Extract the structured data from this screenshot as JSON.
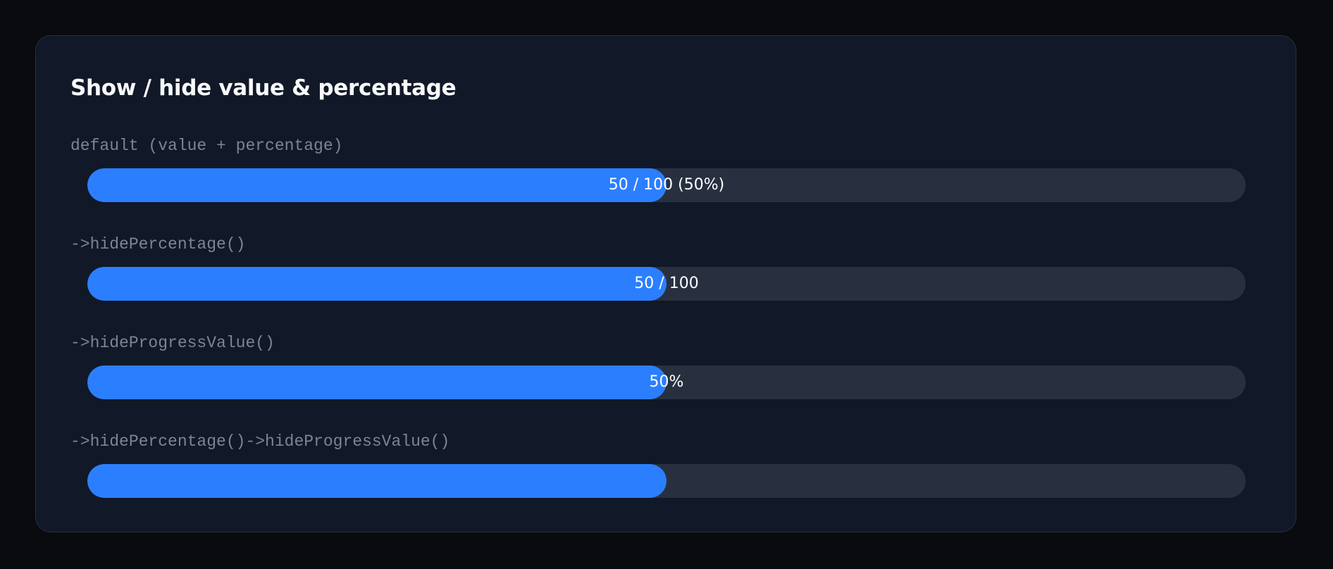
{
  "card": {
    "title": "Show / hide value & percentage"
  },
  "colors": {
    "page_background": "#0a0b0e",
    "card_background": "#111827",
    "card_border": "#243042",
    "track": "#283040",
    "fill": "#2b7fff",
    "label_text": "#7d8594",
    "title_text": "#f8fafc"
  },
  "demos": [
    {
      "label": "default (value + percentage)",
      "progress_fraction": 0.5,
      "progress_text": "50 / 100 (50%)"
    },
    {
      "label": "->hidePercentage()",
      "progress_fraction": 0.5,
      "progress_text": "50 / 100"
    },
    {
      "label": "->hideProgressValue()",
      "progress_fraction": 0.5,
      "progress_text": "50%"
    },
    {
      "label": "->hidePercentage()->hideProgressValue()",
      "progress_fraction": 0.5,
      "progress_text": ""
    }
  ]
}
